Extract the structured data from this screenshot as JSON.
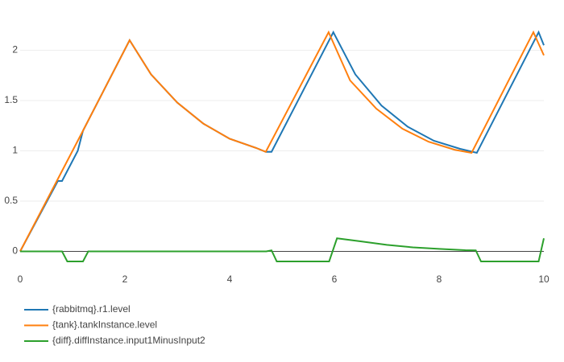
{
  "chart_data": {
    "type": "line",
    "xlim": [
      0,
      10
    ],
    "xticks": [
      0,
      2,
      4,
      6,
      8,
      10
    ],
    "ylim": [
      -0.1,
      2.26
    ],
    "yticks": [
      0,
      0.5,
      1,
      1.5,
      2
    ],
    "grid": true,
    "series": [
      {
        "name": "{rabbitmq}.r1.level",
        "color": "#1f77b4",
        "x": [
          0,
          0.72,
          0.8,
          1.1,
          1.2,
          2.09,
          2.5,
          3,
          3.5,
          4,
          4.5,
          4.69,
          4.8,
          5.98,
          6.4,
          6.9,
          7.4,
          7.9,
          8.4,
          8.72,
          9.9,
          10
        ],
        "values": [
          0,
          0.7,
          0.7,
          1.0,
          1.2,
          2.1,
          1.76,
          1.48,
          1.27,
          1.12,
          1.03,
          0.99,
          0.99,
          2.18,
          1.76,
          1.45,
          1.24,
          1.1,
          1.02,
          0.98,
          2.18,
          2.05
        ]
      },
      {
        "name": "{tank}.tankInstance.level",
        "color": "#ff7f0e",
        "x": [
          0,
          0.7,
          1.2,
          2.09,
          2.5,
          3,
          3.5,
          4,
          4.5,
          4.69,
          5.89,
          6.3,
          6.8,
          7.3,
          7.8,
          8.3,
          8.62,
          9.8,
          10
        ],
        "values": [
          0,
          0.7,
          1.2,
          2.1,
          1.76,
          1.48,
          1.27,
          1.12,
          1.03,
          0.99,
          2.18,
          1.7,
          1.42,
          1.22,
          1.09,
          1.01,
          0.98,
          2.18,
          1.95
        ]
      },
      {
        "name": "{diff}.diffInstance.input1MinusInput2",
        "color": "#2ca02c",
        "x": [
          0,
          0.8,
          0.9,
          1.2,
          1.3,
          4.7,
          4.8,
          4.9,
          5.9,
          6.05,
          6.5,
          7,
          7.5,
          8,
          8.5,
          8.7,
          8.8,
          9.9,
          10
        ],
        "values": [
          0,
          0,
          -0.1,
          -0.1,
          0,
          0,
          0.01,
          -0.1,
          -0.1,
          0.13,
          0.1,
          0.065,
          0.04,
          0.025,
          0.012,
          0.01,
          -0.1,
          -0.1,
          0.13
        ]
      }
    ]
  }
}
